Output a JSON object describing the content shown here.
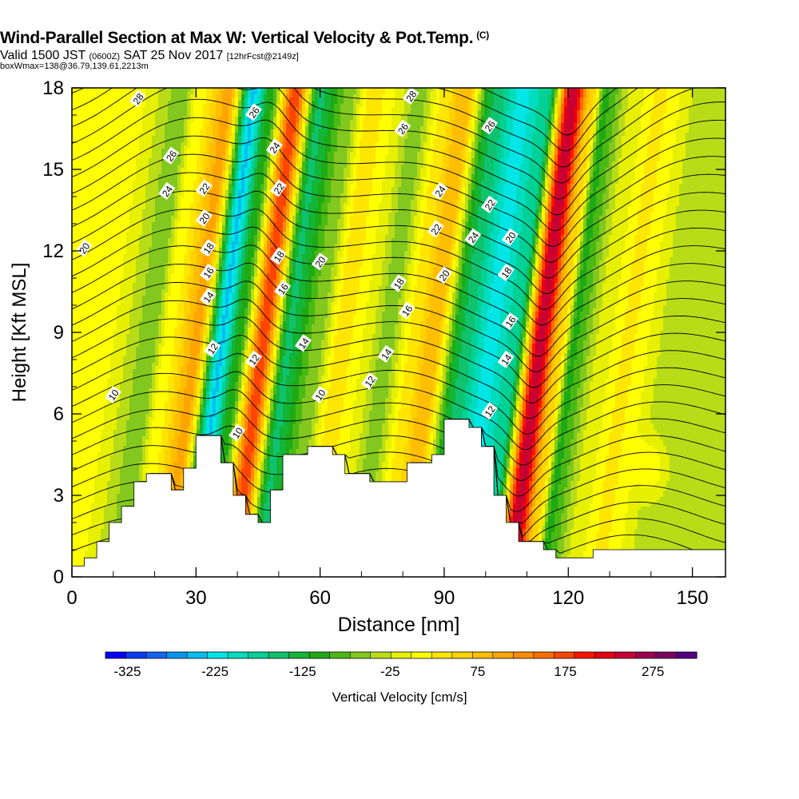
{
  "header": {
    "title": "Wind-Parallel Section at Max W: Vertical Velocity & Pot.Temp.",
    "title_tag": "(C)",
    "valid_prefix": "Valid 1500 JST",
    "valid_utc": "(0600Z)",
    "valid_date": "SAT 25 Nov 2017",
    "forecast": "[12hrFcst@2149z]",
    "boxinfo": "boxWmax=138@36.79,139.61,2213m"
  },
  "chart_data": {
    "type": "heatmap",
    "title": "Wind-Parallel Section at Max W: Vertical Velocity & Pot.Temp.",
    "xlabel": "Distance [nm]",
    "ylabel": "Height [Kft MSL]",
    "xlim": [
      0,
      158
    ],
    "ylim": [
      0,
      18
    ],
    "xticks": [
      0,
      30,
      60,
      90,
      120,
      150
    ],
    "yticks": [
      0,
      3,
      6,
      9,
      12,
      15,
      18
    ],
    "colorbar": {
      "label": "Vertical Velocity [cm/s]",
      "ticks": [
        -325,
        -225,
        -125,
        -25,
        75,
        175,
        275
      ],
      "range": [
        -350,
        300
      ],
      "step": 25,
      "colors": [
        "#0000ff",
        "#0a3cf5",
        "#1464f0",
        "#0096f0",
        "#00bef0",
        "#00e6e6",
        "#00dcbe",
        "#00d296",
        "#0fc36e",
        "#14b437",
        "#1eaa14",
        "#4bb914",
        "#82c81e",
        "#b9dc19",
        "#e6f000",
        "#ffff00",
        "#ffe600",
        "#ffd200",
        "#ffbe00",
        "#ffa500",
        "#ff8c00",
        "#ff6e00",
        "#ff4600",
        "#ff1400",
        "#e60014",
        "#c80032",
        "#9b0050",
        "#7d0064",
        "#550082"
      ]
    },
    "velocity_bands": [
      {
        "x": 6,
        "w": 30
      },
      {
        "x": 17,
        "w": -40
      },
      {
        "x": 21,
        "w": 40
      },
      {
        "x": 28,
        "w": 135
      },
      {
        "x": 34,
        "w": -230
      },
      {
        "x": 38,
        "w": -90
      },
      {
        "x": 44,
        "w": 220
      },
      {
        "x": 50,
        "w": -130
      },
      {
        "x": 57,
        "w": -40
      },
      {
        "x": 63,
        "w": 70
      },
      {
        "x": 68,
        "w": 25
      },
      {
        "x": 74,
        "w": -40
      },
      {
        "x": 81,
        "w": 70
      },
      {
        "x": 85,
        "w": 125
      },
      {
        "x": 92,
        "w": -125
      },
      {
        "x": 99,
        "w": -210
      },
      {
        "x": 105,
        "w": -160
      },
      {
        "x": 111,
        "w": 300
      },
      {
        "x": 116,
        "w": 80
      },
      {
        "x": 119,
        "w": -80
      },
      {
        "x": 126,
        "w": 10
      },
      {
        "x": 132,
        "w": 55
      },
      {
        "x": 144,
        "w": -20
      },
      {
        "x": 152,
        "w": -10
      }
    ],
    "low_level_feature": {
      "x": 140,
      "y": 4,
      "w": 60
    },
    "terrain_kft": [
      [
        0,
        0.4
      ],
      [
        3,
        0.7
      ],
      [
        6,
        1.3
      ],
      [
        9,
        2.0
      ],
      [
        12,
        2.6
      ],
      [
        15,
        3.5
      ],
      [
        18,
        3.8
      ],
      [
        24,
        3.2
      ],
      [
        27,
        4.0
      ],
      [
        30,
        5.2
      ],
      [
        36,
        4.2
      ],
      [
        39,
        3.0
      ],
      [
        42,
        2.3
      ],
      [
        45,
        2.0
      ],
      [
        48,
        3.2
      ],
      [
        51,
        4.5
      ],
      [
        57,
        4.8
      ],
      [
        63,
        4.5
      ],
      [
        66,
        3.8
      ],
      [
        72,
        3.5
      ],
      [
        75,
        3.5
      ],
      [
        81,
        4.2
      ],
      [
        84,
        4.2
      ],
      [
        87,
        4.5
      ],
      [
        90,
        5.8
      ],
      [
        93,
        5.8
      ],
      [
        96,
        5.5
      ],
      [
        99,
        4.8
      ],
      [
        102,
        3.0
      ],
      [
        105,
        2.0
      ],
      [
        108,
        1.3
      ],
      [
        114,
        1.0
      ],
      [
        117,
        0.7
      ],
      [
        123,
        0.7
      ],
      [
        126,
        1.0
      ],
      [
        158,
        1.0
      ]
    ],
    "contour_labels": [
      {
        "x": 16,
        "y": 17.6,
        "text": "28"
      },
      {
        "x": 24,
        "y": 15.5,
        "text": "26"
      },
      {
        "x": 23,
        "y": 14.2,
        "text": "24"
      },
      {
        "x": 32,
        "y": 14.3,
        "text": "22"
      },
      {
        "x": 32,
        "y": 13.2,
        "text": "20"
      },
      {
        "x": 33,
        "y": 12.1,
        "text": "18"
      },
      {
        "x": 33,
        "y": 11.2,
        "text": "16"
      },
      {
        "x": 33,
        "y": 10.3,
        "text": "14"
      },
      {
        "x": 34,
        "y": 8.4,
        "text": "12"
      },
      {
        "x": 40,
        "y": 5.3,
        "text": "10"
      },
      {
        "x": 10,
        "y": 6.7,
        "text": "10"
      },
      {
        "x": 3,
        "y": 12.1,
        "text": "20"
      },
      {
        "x": 44,
        "y": 17.1,
        "text": "26"
      },
      {
        "x": 49,
        "y": 15.8,
        "text": "24"
      },
      {
        "x": 50,
        "y": 14.3,
        "text": "22"
      },
      {
        "x": 50,
        "y": 11.8,
        "text": "18"
      },
      {
        "x": 51,
        "y": 10.6,
        "text": "16"
      },
      {
        "x": 56,
        "y": 8.6,
        "text": "14"
      },
      {
        "x": 44,
        "y": 8.0,
        "text": "12"
      },
      {
        "x": 60,
        "y": 11.6,
        "text": "20"
      },
      {
        "x": 60,
        "y": 6.7,
        "text": "10"
      },
      {
        "x": 82,
        "y": 17.7,
        "text": "28"
      },
      {
        "x": 80,
        "y": 16.5,
        "text": "26"
      },
      {
        "x": 79,
        "y": 10.8,
        "text": "18"
      },
      {
        "x": 81,
        "y": 9.8,
        "text": "16"
      },
      {
        "x": 76,
        "y": 8.2,
        "text": "14"
      },
      {
        "x": 72,
        "y": 7.2,
        "text": "12"
      },
      {
        "x": 89,
        "y": 14.2,
        "text": "24"
      },
      {
        "x": 88,
        "y": 12.8,
        "text": "22"
      },
      {
        "x": 90,
        "y": 11.1,
        "text": "20"
      },
      {
        "x": 101,
        "y": 16.6,
        "text": "26"
      },
      {
        "x": 101,
        "y": 13.7,
        "text": "22"
      },
      {
        "x": 97,
        "y": 12.5,
        "text": "24"
      },
      {
        "x": 106,
        "y": 12.5,
        "text": "20"
      },
      {
        "x": 105,
        "y": 11.2,
        "text": "18"
      },
      {
        "x": 106,
        "y": 9.4,
        "text": "16"
      },
      {
        "x": 105,
        "y": 8.0,
        "text": "14"
      },
      {
        "x": 101,
        "y": 6.1,
        "text": "12"
      }
    ]
  }
}
